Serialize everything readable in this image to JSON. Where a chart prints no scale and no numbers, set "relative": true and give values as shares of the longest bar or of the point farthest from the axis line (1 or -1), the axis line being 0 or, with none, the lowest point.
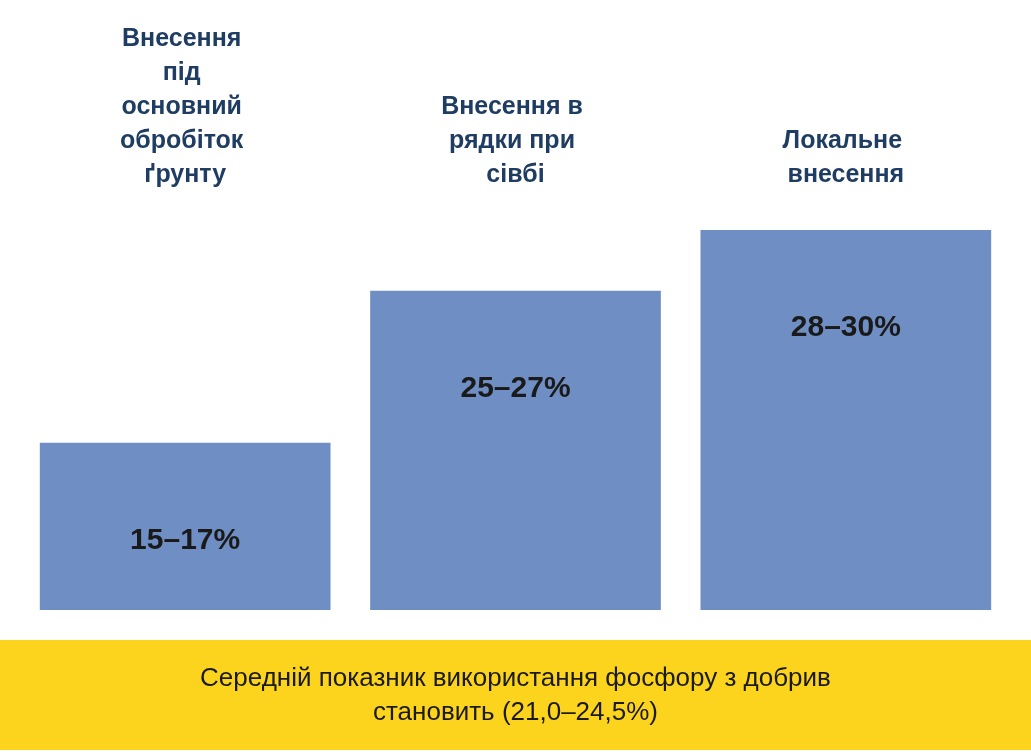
{
  "chart_data": {
    "type": "bar",
    "relative": true,
    "categories": [
      "Внесення під основний обробіток ґрунту",
      "Внесення в рядки при сівбі",
      "Локальне внесення"
    ],
    "values": [
      0.44,
      0.84,
      1
    ],
    "color": "#6f8fc4",
    "annotations": [
      {
        "text": "15–17%",
        "x": "Внесення під основний обробіток ґрунту",
        "y": 0.44
      },
      {
        "text": "25–27%",
        "x": "Внесення в рядки при сівбі",
        "y": 0.84
      },
      {
        "text": "28–30%",
        "x": "Локальне внесення",
        "y": 1
      },
      "Середній показник використання фосфору з добрив становить (21,0–24,5%)"
    ]
  }
}
